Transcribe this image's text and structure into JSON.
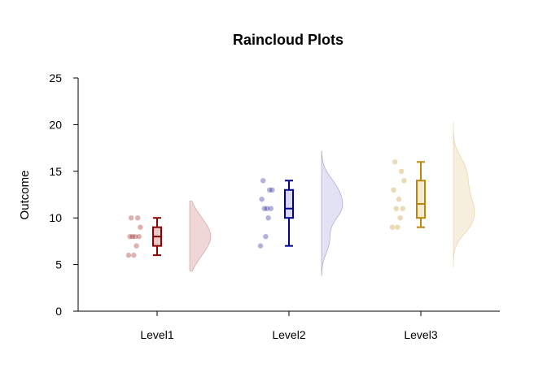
{
  "chart_data": {
    "type": "raincloud",
    "title": "Raincloud Plots",
    "xlabel": "",
    "ylabel": "Outcome",
    "ylim": [
      0,
      25
    ],
    "yticks": [
      0,
      5,
      10,
      15,
      20,
      25
    ],
    "grid": false,
    "legend": "none",
    "categories": [
      "Level1",
      "Level2",
      "Level3"
    ],
    "series": [
      {
        "category": "Level1",
        "color": "#8B0000",
        "fill": "#e9c9c9",
        "points": [
          10,
          10,
          9,
          8,
          8,
          8,
          8,
          7,
          6,
          6
        ],
        "box": {
          "min": 6,
          "q1": 7,
          "median": 8,
          "q3": 9,
          "max": 10
        },
        "density_range": [
          4.3,
          11.8
        ]
      },
      {
        "category": "Level2",
        "color": "#00008B",
        "fill": "#d8d8f0",
        "points": [
          14,
          13,
          13,
          12,
          11,
          11,
          11,
          10,
          8,
          7
        ],
        "box": {
          "min": 7,
          "q1": 10,
          "median": 11,
          "q3": 13,
          "max": 14
        },
        "density_range": [
          3.8,
          17.2
        ]
      },
      {
        "category": "Level3",
        "color": "#B8860B",
        "fill": "#f3ead2",
        "points": [
          16,
          15,
          14,
          13,
          12,
          11,
          11,
          10,
          9,
          9
        ],
        "box": {
          "min": 9,
          "q1": 10,
          "median": 11.5,
          "q3": 14,
          "max": 16
        },
        "density_range": [
          4.7,
          20.3
        ]
      }
    ]
  }
}
